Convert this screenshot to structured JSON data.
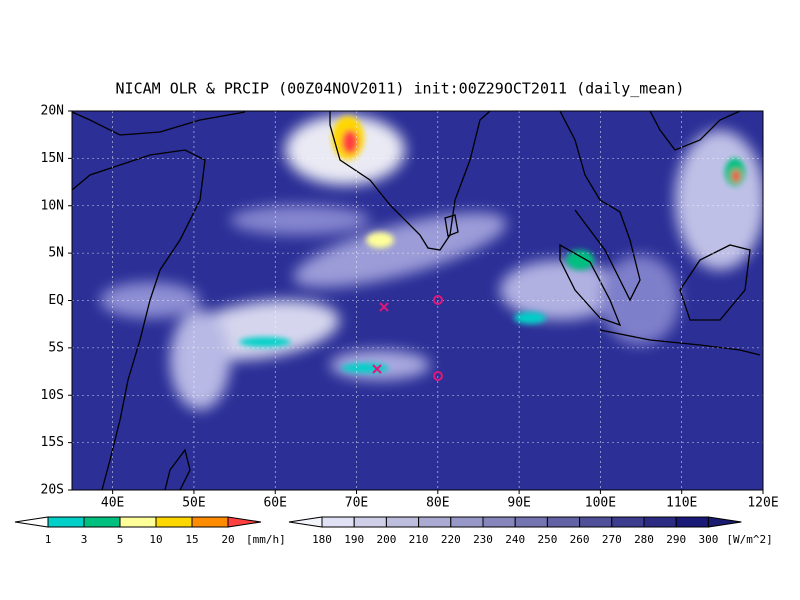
{
  "title": "NICAM OLR & PRCIP (00Z04NOV2011) init:00Z29OCT2011 (daily_mean)",
  "map": {
    "lat_labels": [
      "20N",
      "15N",
      "10N",
      "5N",
      "EQ",
      "5S",
      "10S",
      "15S",
      "20S"
    ],
    "lon_labels": [
      "40E",
      "50E",
      "60E",
      "70E",
      "80E",
      "90E",
      "100E",
      "110E",
      "120E"
    ]
  },
  "legends": {
    "precip": {
      "labels": [
        "1",
        "3",
        "5",
        "10",
        "15",
        "20"
      ],
      "unit": "[mm/h]"
    },
    "olr": {
      "labels": [
        "180",
        "190",
        "200",
        "210",
        "220",
        "230",
        "240",
        "250",
        "260",
        "270",
        "280",
        "290",
        "300"
      ],
      "unit": "[W/m^2]"
    }
  }
}
